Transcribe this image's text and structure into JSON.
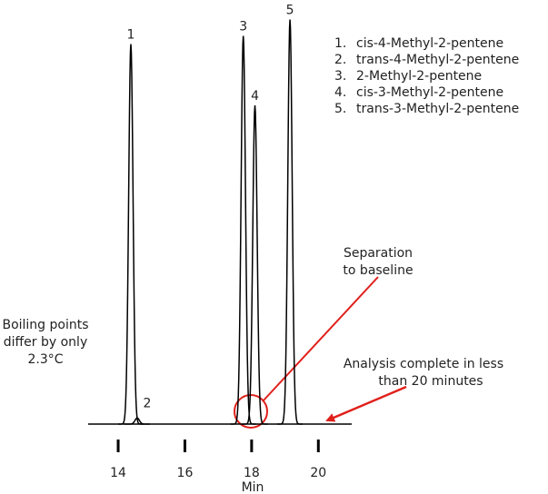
{
  "chart_data": {
    "type": "chromatogram",
    "x_label": "Min",
    "xlim": [
      13.1,
      21.0
    ],
    "xticks": [
      14,
      16,
      18,
      20
    ],
    "ylim": [
      0,
      100
    ],
    "color": "#000000",
    "peaks": [
      {
        "label": "1",
        "legend_label": "1.",
        "name": "cis-4-Methyl-2-pentene",
        "x": 14.38,
        "height": 93
      },
      {
        "label": "2",
        "legend_label": "2.",
        "name": "trans-4-Methyl-2-pentene",
        "x": 14.57,
        "height": 1.5
      },
      {
        "label": "3",
        "legend_label": "3.",
        "name": "2-Methyl-2-pentene",
        "x": 17.75,
        "height": 95
      },
      {
        "label": "4",
        "legend_label": "4.",
        "name": "cis-3-Methyl-2-pentene",
        "x": 18.1,
        "height": 78
      },
      {
        "label": "5",
        "legend_label": "5.",
        "name": "trans-3-Methyl-2-pentene",
        "x": 19.15,
        "height": 99
      }
    ],
    "annotations": [
      {
        "lines": [
          "Boiling points",
          "differ by only",
          "2.3°C"
        ]
      },
      {
        "lines": [
          "Separation",
          "to baseline"
        ]
      },
      {
        "lines": [
          "Analysis complete in less",
          "than 20 minutes"
        ]
      }
    ]
  }
}
